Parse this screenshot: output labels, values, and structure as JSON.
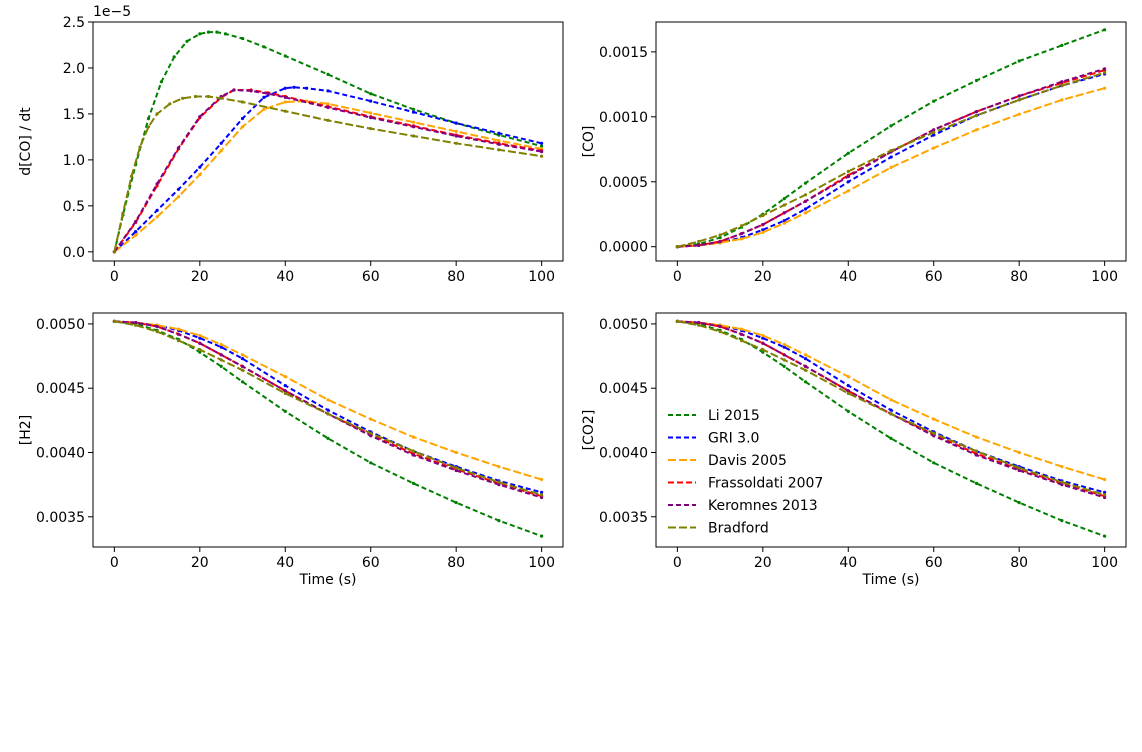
{
  "chart_data": [
    {
      "type": "line",
      "title": "",
      "xlabel": "",
      "ylabel": "d[CO] / dt",
      "offset_text": "1e−5",
      "xlim": [
        -5,
        105
      ],
      "ylim": [
        -0.1,
        2.5
      ],
      "xticks": [
        0,
        20,
        40,
        60,
        80,
        100
      ],
      "yticks": [
        0.0,
        0.5,
        1.0,
        1.5,
        2.0,
        2.5
      ],
      "ytick_labels": [
        "0.0",
        "0.5",
        "1.0",
        "1.5",
        "2.0",
        "2.5"
      ],
      "legend": null,
      "series": [
        {
          "name": "Li 2015",
          "color": "#008000",
          "x": [
            0,
            2,
            5,
            8,
            11,
            14,
            17,
            20,
            22,
            24,
            26,
            30,
            35,
            40,
            50,
            60,
            70,
            80,
            90,
            100
          ],
          "y": [
            0,
            0.4,
            0.95,
            1.45,
            1.85,
            2.12,
            2.29,
            2.37,
            2.39,
            2.39,
            2.37,
            2.32,
            2.23,
            2.13,
            1.93,
            1.72,
            1.55,
            1.4,
            1.27,
            1.15
          ]
        },
        {
          "name": "GRI 3.0",
          "color": "#0000ff",
          "x": [
            0,
            5,
            10,
            15,
            20,
            25,
            30,
            35,
            40,
            42,
            45,
            50,
            60,
            70,
            80,
            90,
            100
          ],
          "y": [
            0,
            0.22,
            0.45,
            0.68,
            0.92,
            1.18,
            1.45,
            1.68,
            1.78,
            1.79,
            1.78,
            1.75,
            1.64,
            1.52,
            1.4,
            1.29,
            1.18
          ]
        },
        {
          "name": "Davis 2005",
          "color": "#ffa500",
          "x": [
            0,
            5,
            10,
            15,
            20,
            25,
            30,
            35,
            40,
            45,
            50,
            60,
            70,
            80,
            90,
            100
          ],
          "y": [
            0,
            0.18,
            0.38,
            0.6,
            0.84,
            1.1,
            1.36,
            1.55,
            1.63,
            1.64,
            1.61,
            1.51,
            1.41,
            1.31,
            1.21,
            1.12
          ]
        },
        {
          "name": "Frassoldati 2007",
          "color": "#ff0000",
          "x": [
            0,
            5,
            10,
            15,
            20,
            25,
            28,
            32,
            36,
            40,
            50,
            60,
            70,
            80,
            90,
            100
          ],
          "y": [
            0,
            0.32,
            0.72,
            1.12,
            1.46,
            1.68,
            1.76,
            1.76,
            1.73,
            1.69,
            1.58,
            1.47,
            1.37,
            1.27,
            1.18,
            1.1
          ]
        },
        {
          "name": "Keromnes 2013",
          "color": "#800080",
          "x": [
            0,
            5,
            10,
            15,
            20,
            25,
            28,
            32,
            36,
            40,
            50,
            60,
            70,
            80,
            90,
            100
          ],
          "y": [
            0,
            0.33,
            0.74,
            1.13,
            1.47,
            1.69,
            1.76,
            1.75,
            1.72,
            1.68,
            1.57,
            1.46,
            1.36,
            1.26,
            1.17,
            1.09
          ]
        },
        {
          "name": "Bradford",
          "color": "#808000",
          "x": [
            0,
            2,
            4,
            6,
            8,
            10,
            13,
            16,
            19,
            22,
            25,
            30,
            40,
            50,
            60,
            70,
            80,
            90,
            100
          ],
          "y": [
            0,
            0.42,
            0.82,
            1.14,
            1.36,
            1.5,
            1.61,
            1.67,
            1.69,
            1.69,
            1.67,
            1.63,
            1.53,
            1.43,
            1.34,
            1.26,
            1.18,
            1.11,
            1.04
          ]
        }
      ]
    },
    {
      "type": "line",
      "title": "",
      "xlabel": "",
      "ylabel": "[CO]",
      "xlim": [
        -5,
        105
      ],
      "ylim": [
        -0.00011,
        0.00173
      ],
      "xticks": [
        0,
        20,
        40,
        60,
        80,
        100
      ],
      "yticks": [
        0.0,
        0.0005,
        0.001,
        0.0015
      ],
      "ytick_labels": [
        "0.0000",
        "0.0005",
        "0.0010",
        "0.0015"
      ],
      "legend": null,
      "series": [
        {
          "name": "Li 2015",
          "color": "#008000",
          "x": [
            0,
            5,
            10,
            15,
            20,
            25,
            30,
            40,
            50,
            60,
            70,
            80,
            90,
            100
          ],
          "y": [
            0,
            2e-05,
            7e-05,
            0.00015,
            0.00025,
            0.00037,
            0.00049,
            0.00072,
            0.00093,
            0.00112,
            0.00128,
            0.00143,
            0.00155,
            0.00167
          ]
        },
        {
          "name": "GRI 3.0",
          "color": "#0000ff",
          "x": [
            0,
            5,
            10,
            15,
            20,
            25,
            30,
            40,
            50,
            60,
            70,
            80,
            90,
            100
          ],
          "y": [
            0,
            1e-05,
            3e-05,
            7e-05,
            0.00013,
            0.0002,
            0.00029,
            0.0005,
            0.00069,
            0.00086,
            0.00101,
            0.00113,
            0.00124,
            0.00133
          ]
        },
        {
          "name": "Davis 2005",
          "color": "#ffa500",
          "x": [
            0,
            5,
            10,
            15,
            20,
            25,
            30,
            40,
            50,
            60,
            70,
            80,
            90,
            100
          ],
          "y": [
            0,
            1e-05,
            3e-05,
            6e-05,
            0.00011,
            0.00018,
            0.00026,
            0.00043,
            0.00061,
            0.00076,
            0.0009,
            0.00102,
            0.00113,
            0.00122
          ]
        },
        {
          "name": "Frassoldati 2007",
          "color": "#ff0000",
          "x": [
            0,
            5,
            10,
            15,
            20,
            25,
            30,
            40,
            50,
            60,
            70,
            80,
            90,
            100
          ],
          "y": [
            0,
            1e-05,
            4e-05,
            0.0001,
            0.00017,
            0.00026,
            0.00035,
            0.00055,
            0.00073,
            0.0009,
            0.00104,
            0.00116,
            0.00126,
            0.00136
          ]
        },
        {
          "name": "Keromnes 2013",
          "color": "#800080",
          "x": [
            0,
            5,
            10,
            15,
            20,
            25,
            30,
            40,
            50,
            60,
            70,
            80,
            90,
            100
          ],
          "y": [
            0,
            1e-05,
            4e-05,
            0.0001,
            0.00017,
            0.00026,
            0.00035,
            0.00054,
            0.00073,
            0.0009,
            0.00104,
            0.00116,
            0.00127,
            0.00137
          ]
        },
        {
          "name": "Bradford",
          "color": "#808000",
          "x": [
            0,
            5,
            10,
            15,
            20,
            25,
            30,
            40,
            50,
            60,
            70,
            80,
            90,
            100
          ],
          "y": [
            0,
            4e-05,
            9e-05,
            0.00016,
            0.00024,
            0.00032,
            0.0004,
            0.00058,
            0.00074,
            0.00088,
            0.00101,
            0.00113,
            0.00124,
            0.00134
          ]
        }
      ]
    },
    {
      "type": "line",
      "title": "",
      "xlabel": "Time (s)",
      "ylabel": "[H2]",
      "xlim": [
        -5,
        105
      ],
      "ylim": [
        0.003265,
        0.005085
      ],
      "xticks": [
        0,
        20,
        40,
        60,
        80,
        100
      ],
      "yticks": [
        0.0035,
        0.004,
        0.0045,
        0.005
      ],
      "ytick_labels": [
        "0.0035",
        "0.0040",
        "0.0045",
        "0.0050"
      ],
      "legend": null,
      "series": [
        {
          "name": "Li 2015",
          "color": "#008000",
          "x": [
            0,
            5,
            10,
            15,
            20,
            25,
            30,
            40,
            50,
            60,
            70,
            80,
            90,
            100
          ],
          "y": [
            0.00502,
            0.005,
            0.00495,
            0.00488,
            0.00478,
            0.00467,
            0.00455,
            0.00432,
            0.00411,
            0.00392,
            0.00376,
            0.00361,
            0.00347,
            0.00335
          ]
        },
        {
          "name": "GRI 3.0",
          "color": "#0000ff",
          "x": [
            0,
            5,
            10,
            15,
            20,
            25,
            30,
            40,
            50,
            60,
            70,
            80,
            90,
            100
          ],
          "y": [
            0.00502,
            0.00501,
            0.00499,
            0.00495,
            0.00489,
            0.00482,
            0.00473,
            0.00452,
            0.00433,
            0.00416,
            0.00401,
            0.00389,
            0.00378,
            0.00369
          ]
        },
        {
          "name": "Davis 2005",
          "color": "#ffa500",
          "x": [
            0,
            5,
            10,
            15,
            20,
            25,
            30,
            40,
            50,
            60,
            70,
            80,
            90,
            100
          ],
          "y": [
            0.00502,
            0.00501,
            0.00499,
            0.00496,
            0.00491,
            0.00484,
            0.00476,
            0.00459,
            0.00441,
            0.00426,
            0.00412,
            0.004,
            0.00389,
            0.00379
          ]
        },
        {
          "name": "Frassoldati 2007",
          "color": "#ff0000",
          "x": [
            0,
            5,
            10,
            15,
            20,
            25,
            30,
            40,
            50,
            60,
            70,
            80,
            90,
            100
          ],
          "y": [
            0.00502,
            0.00501,
            0.00498,
            0.00492,
            0.00485,
            0.00476,
            0.00467,
            0.00448,
            0.0043,
            0.00414,
            0.00399,
            0.00387,
            0.00376,
            0.00366
          ]
        },
        {
          "name": "Keromnes 2013",
          "color": "#800080",
          "x": [
            0,
            5,
            10,
            15,
            20,
            25,
            30,
            40,
            50,
            60,
            70,
            80,
            90,
            100
          ],
          "y": [
            0.00502,
            0.00501,
            0.00498,
            0.00492,
            0.00485,
            0.00476,
            0.00467,
            0.00448,
            0.0043,
            0.00413,
            0.00398,
            0.00386,
            0.00375,
            0.00365
          ]
        },
        {
          "name": "Bradford",
          "color": "#808000",
          "x": [
            0,
            5,
            10,
            15,
            20,
            25,
            30,
            40,
            50,
            60,
            70,
            80,
            90,
            100
          ],
          "y": [
            0.00502,
            0.00499,
            0.00494,
            0.00487,
            0.0048,
            0.00472,
            0.00464,
            0.00446,
            0.0043,
            0.00415,
            0.00401,
            0.00388,
            0.00377,
            0.00367
          ]
        }
      ]
    },
    {
      "type": "line",
      "title": "",
      "xlabel": "Time (s)",
      "ylabel": "[CO2]",
      "xlim": [
        -5,
        105
      ],
      "ylim": [
        0.003265,
        0.005085
      ],
      "xticks": [
        0,
        20,
        40,
        60,
        80,
        100
      ],
      "yticks": [
        0.0035,
        0.004,
        0.0045,
        0.005
      ],
      "ytick_labels": [
        "0.0035",
        "0.0040",
        "0.0045",
        "0.0050"
      ],
      "legend": "center-left",
      "series": [
        {
          "name": "Li 2015",
          "color": "#008000",
          "x": [
            0,
            5,
            10,
            15,
            20,
            25,
            30,
            40,
            50,
            60,
            70,
            80,
            90,
            100
          ],
          "y": [
            0.00502,
            0.005,
            0.00495,
            0.00488,
            0.00478,
            0.00467,
            0.00455,
            0.00432,
            0.00411,
            0.00392,
            0.00376,
            0.00361,
            0.00347,
            0.00335
          ]
        },
        {
          "name": "GRI 3.0",
          "color": "#0000ff",
          "x": [
            0,
            5,
            10,
            15,
            20,
            25,
            30,
            40,
            50,
            60,
            70,
            80,
            90,
            100
          ],
          "y": [
            0.00502,
            0.00501,
            0.00499,
            0.00495,
            0.00489,
            0.00482,
            0.00473,
            0.00452,
            0.00433,
            0.00416,
            0.00401,
            0.00389,
            0.00378,
            0.00369
          ]
        },
        {
          "name": "Davis 2005",
          "color": "#ffa500",
          "x": [
            0,
            5,
            10,
            15,
            20,
            25,
            30,
            40,
            50,
            60,
            70,
            80,
            90,
            100
          ],
          "y": [
            0.00502,
            0.00501,
            0.00499,
            0.00496,
            0.00491,
            0.00484,
            0.00476,
            0.00459,
            0.00441,
            0.00426,
            0.00412,
            0.004,
            0.00389,
            0.00379
          ]
        },
        {
          "name": "Frassoldati 2007",
          "color": "#ff0000",
          "x": [
            0,
            5,
            10,
            15,
            20,
            25,
            30,
            40,
            50,
            60,
            70,
            80,
            90,
            100
          ],
          "y": [
            0.00502,
            0.00501,
            0.00498,
            0.00492,
            0.00485,
            0.00476,
            0.00467,
            0.00448,
            0.0043,
            0.00414,
            0.00399,
            0.00387,
            0.00376,
            0.00366
          ]
        },
        {
          "name": "Keromnes 2013",
          "color": "#800080",
          "x": [
            0,
            5,
            10,
            15,
            20,
            25,
            30,
            40,
            50,
            60,
            70,
            80,
            90,
            100
          ],
          "y": [
            0.00502,
            0.00501,
            0.00498,
            0.00492,
            0.00485,
            0.00476,
            0.00467,
            0.00448,
            0.0043,
            0.00413,
            0.00398,
            0.00386,
            0.00375,
            0.00365
          ]
        },
        {
          "name": "Bradford",
          "color": "#808000",
          "x": [
            0,
            5,
            10,
            15,
            20,
            25,
            30,
            40,
            50,
            60,
            70,
            80,
            90,
            100
          ],
          "y": [
            0.00502,
            0.00499,
            0.00494,
            0.00487,
            0.0048,
            0.00472,
            0.00464,
            0.00446,
            0.0043,
            0.00415,
            0.00401,
            0.00388,
            0.00377,
            0.00367
          ]
        }
      ]
    }
  ]
}
